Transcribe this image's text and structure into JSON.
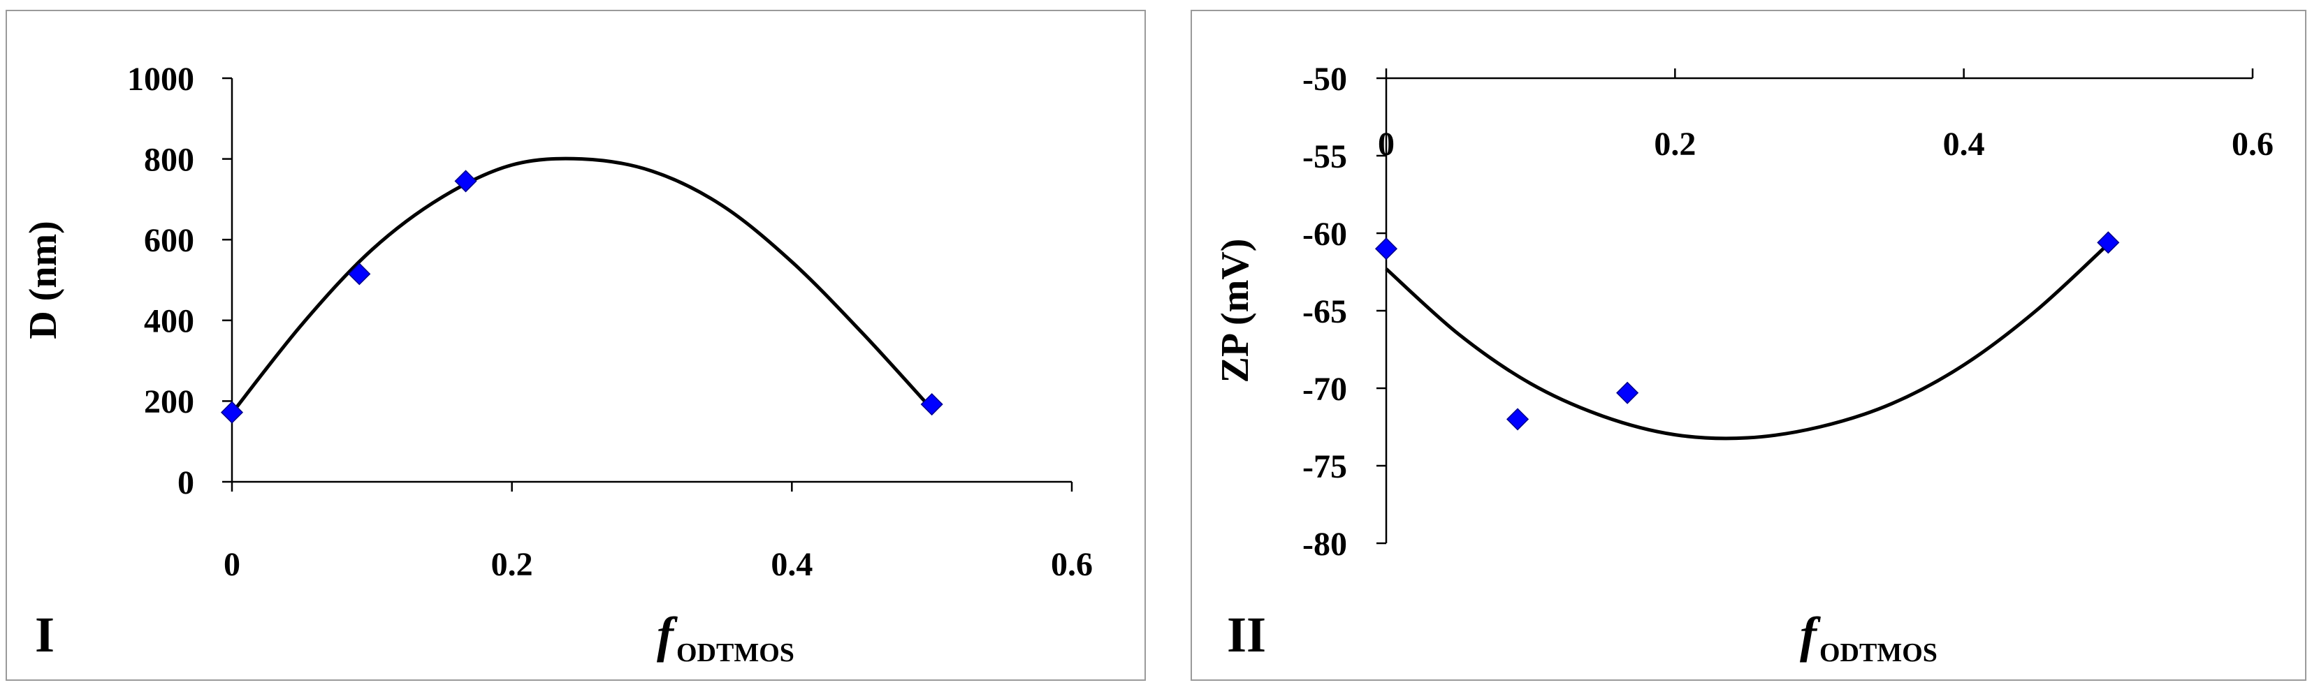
{
  "chart_data": [
    {
      "type": "scatter",
      "panel_label": "I",
      "xlabel": {
        "main": "f",
        "subscript": "ODTMOS"
      },
      "ylabel": "D (nm)",
      "xlim": [
        0,
        0.6
      ],
      "ylim": [
        0,
        1000
      ],
      "xticks": [
        "0",
        "0.2",
        "0.4",
        "0.6"
      ],
      "yticks": [
        "0",
        "200",
        "400",
        "600",
        "800",
        "1000"
      ],
      "x_axis_position": "bottom",
      "grid": false,
      "marker": "diamond",
      "marker_color": "#0000ff",
      "line_color": "#000000",
      "points": [
        {
          "x": 0,
          "y": 172
        },
        {
          "x": 0.091,
          "y": 515
        },
        {
          "x": 0.167,
          "y": 745
        },
        {
          "x": 0.5,
          "y": 192
        }
      ],
      "trendline": {
        "type": "polynomial",
        "order": 2,
        "x": [
          0,
          0.05,
          0.1,
          0.15,
          0.2,
          0.25,
          0.3,
          0.35,
          0.4,
          0.45,
          0.5
        ],
        "y": [
          170,
          390,
          575,
          705,
          785,
          800,
          770,
          685,
          545,
          370,
          180
        ]
      }
    },
    {
      "type": "scatter",
      "panel_label": "II",
      "xlabel": {
        "main": "f",
        "subscript": "ODTMOS"
      },
      "ylabel": "ZP (mV)",
      "xlim": [
        0,
        0.6
      ],
      "ylim": [
        -80,
        -50
      ],
      "xticks": [
        "0",
        "0.2",
        "0.4",
        "0.6"
      ],
      "yticks": [
        "-80",
        "-75",
        "-70",
        "-65",
        "-60",
        "-55",
        "-50"
      ],
      "x_axis_position": "top",
      "grid": false,
      "marker": "diamond",
      "marker_color": "#0000ff",
      "line_color": "#000000",
      "points": [
        {
          "x": 0,
          "y": -61
        },
        {
          "x": 0.091,
          "y": -72
        },
        {
          "x": 0.167,
          "y": -70.3
        },
        {
          "x": 0.5,
          "y": -60.6
        }
      ],
      "trendline": {
        "type": "polynomial",
        "order": 2,
        "x": [
          0,
          0.05,
          0.1,
          0.15,
          0.2,
          0.25,
          0.3,
          0.35,
          0.4,
          0.45,
          0.5
        ],
        "y": [
          -62.3,
          -66.5,
          -69.7,
          -71.8,
          -73.0,
          -73.2,
          -72.5,
          -71.0,
          -68.5,
          -65.0,
          -60.7
        ]
      }
    }
  ]
}
